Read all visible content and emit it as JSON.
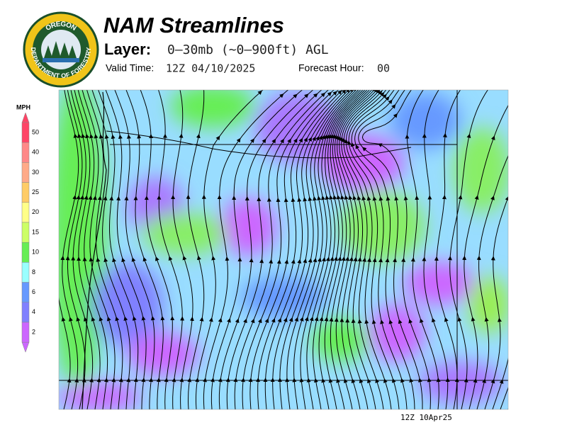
{
  "header": {
    "title": "NAM Streamlines",
    "layer_label": "Layer:",
    "layer": "0–30mb (~0–900ft) AGL",
    "valid_label": "Valid Time:",
    "valid_time": "12Z 04/10/2025",
    "forecast_label": "Forecast Hour:",
    "forecast_hour": "00"
  },
  "logo": {
    "top": "OREGON",
    "bottom": "DEPARTMENT OF FORESTRY"
  },
  "legend": {
    "title": "MPH",
    "levels": [
      50,
      40,
      30,
      25,
      20,
      15,
      10,
      8,
      6,
      4,
      2
    ],
    "colors": [
      "#ff4466",
      "#ff8888",
      "#ffaa88",
      "#ffcc66",
      "#ffff88",
      "#ccff66",
      "#66ee55",
      "#99ffff",
      "#6699ff",
      "#8080ff",
      "#cc66ff"
    ]
  },
  "footer": {
    "stamp": "12Z 10Apr25"
  }
}
